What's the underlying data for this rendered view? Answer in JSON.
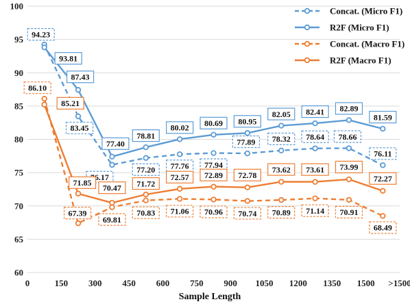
{
  "chart_data": {
    "type": "line",
    "title": "",
    "xlabel": "Sample Length",
    "ylabel": "",
    "x_tick_labels": [
      "0",
      "150",
      "300",
      "450",
      "600",
      "750",
      "900",
      "1050",
      "1200",
      "1350",
      "1500",
      ">1500"
    ],
    "x_ticks": [
      0,
      150,
      300,
      450,
      600,
      750,
      900,
      1050,
      1200,
      1350,
      1500,
      1650
    ],
    "xlim": [
      0,
      1650
    ],
    "y_ticks": [
      60,
      65,
      70,
      75,
      80,
      85,
      90,
      95,
      100
    ],
    "ylim": [
      60,
      100
    ],
    "grid": "horizontal",
    "legend_position": "top-right",
    "x": [
      75,
      225,
      375,
      525,
      675,
      825,
      975,
      1125,
      1275,
      1425,
      1575
    ],
    "series": [
      {
        "name": "Concat. (Micro F1)",
        "color": "#5B9BD5",
        "dashed": true,
        "values": [
          94.23,
          83.45,
          76.17,
          77.2,
          77.76,
          77.94,
          77.89,
          78.32,
          78.64,
          78.66,
          76.11
        ],
        "labels": [
          "94.23",
          "83.45",
          "76.17",
          "77.20",
          "77.76",
          "77.94",
          "77.89",
          "78.32",
          "78.64",
          "78.66",
          "76.11"
        ]
      },
      {
        "name": "R2F (Micro F1)",
        "color": "#5B9BD5",
        "dashed": false,
        "values": [
          93.81,
          87.43,
          77.4,
          78.81,
          80.02,
          80.69,
          80.95,
          82.05,
          82.41,
          82.89,
          81.59
        ],
        "labels": [
          "93.81",
          "87.43",
          "77.40",
          "78.81",
          "80.02",
          "80.69",
          "80.95",
          "82.05",
          "82.41",
          "82.89",
          "81.59"
        ]
      },
      {
        "name": "Concat. (Macro F1)",
        "color": "#ED7D31",
        "dashed": true,
        "values": [
          86.1,
          67.39,
          69.81,
          70.83,
          71.06,
          70.96,
          70.74,
          70.89,
          71.14,
          70.91,
          68.49
        ],
        "labels": [
          "86.10",
          "67.39",
          "69.81",
          "70.83",
          "71.06",
          "70.96",
          "70.74",
          "70.89",
          "71.14",
          "70.91",
          "68.49"
        ]
      },
      {
        "name": "R2F (Macro F1)",
        "color": "#ED7D31",
        "dashed": false,
        "values": [
          85.21,
          71.85,
          70.47,
          71.72,
          72.57,
          72.89,
          72.78,
          73.62,
          73.61,
          73.99,
          72.27
        ],
        "labels": [
          "85.21",
          "71.85",
          "70.47",
          "71.72",
          "72.57",
          "72.89",
          "72.78",
          "73.62",
          "73.61",
          "73.99",
          "72.27"
        ]
      }
    ]
  }
}
